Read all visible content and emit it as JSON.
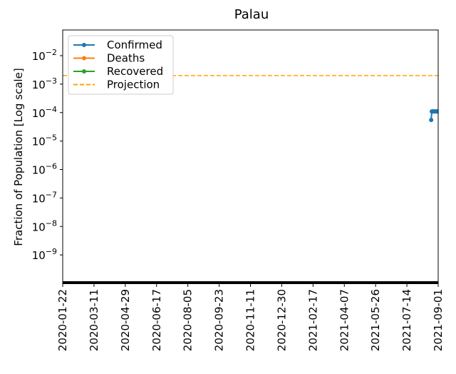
{
  "chart_data": {
    "type": "line",
    "title": "Palau",
    "ylabel": "Fraction of Population [Log scale]",
    "log_scale": true,
    "legend": "upper left",
    "xlim": [
      "2020-01-22",
      "2021-09-01"
    ],
    "xticks": [
      "2020-01-22",
      "2020-03-11",
      "2020-04-29",
      "2020-06-17",
      "2020-08-05",
      "2020-09-23",
      "2020-11-11",
      "2020-12-30",
      "2021-02-17",
      "2021-04-07",
      "2021-05-26",
      "2021-07-14",
      "2021-09-01"
    ],
    "ylim": [
      1e-10,
      0.08
    ],
    "yticks": [
      {
        "value": 1e-09,
        "label": "10−9"
      },
      {
        "value": 1e-08,
        "label": "10−8"
      },
      {
        "value": 1e-07,
        "label": "10−7"
      },
      {
        "value": 1e-06,
        "label": "10−6"
      },
      {
        "value": 1e-05,
        "label": "10−5"
      },
      {
        "value": 0.0001,
        "label": "10−4"
      },
      {
        "value": 0.001,
        "label": "10−3"
      },
      {
        "value": 0.01,
        "label": "10−2"
      }
    ],
    "series": [
      {
        "name": "Confirmed",
        "color": "#1f77b4",
        "marker": true,
        "x": [
          "2021-08-21",
          "2021-08-22",
          "2021-08-23",
          "2021-08-24",
          "2021-08-25",
          "2021-08-26",
          "2021-08-27",
          "2021-08-28",
          "2021-08-29",
          "2021-08-30",
          "2021-08-31",
          "2021-09-01"
        ],
        "values": [
          5.5e-05,
          0.00011,
          0.00011,
          0.00011,
          0.00011,
          0.00011,
          0.00011,
          0.00011,
          0.00011,
          0.00011,
          0.00011,
          0.00011
        ]
      },
      {
        "name": "Deaths",
        "color": "#ff7f0e",
        "marker": true,
        "x": [
          "2021-08-21",
          "2021-09-01"
        ],
        "values": [
          0,
          0
        ]
      },
      {
        "name": "Recovered",
        "color": "#2ca02c",
        "marker": true,
        "x": [
          "2021-08-21",
          "2021-09-01"
        ],
        "values": [
          0,
          0
        ]
      },
      {
        "name": "Projection",
        "color": "#ffa500",
        "linestyle": "dashed",
        "x": [
          "2020-01-22",
          "2021-09-01"
        ],
        "values": [
          0.002,
          0.002
        ]
      }
    ]
  }
}
